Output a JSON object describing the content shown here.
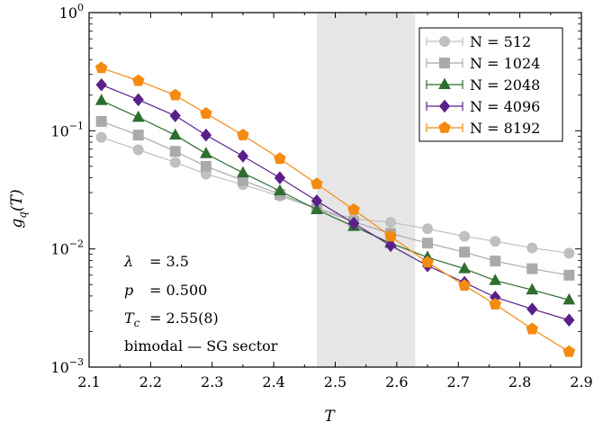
{
  "chart_data": {
    "type": "line",
    "xlabel": "T",
    "ylabel": "g_q(T)",
    "xlim": [
      2.1,
      2.9
    ],
    "ylim": [
      0.001,
      1
    ],
    "yscale": "log",
    "x_ticks": [
      "2.1",
      "2.2",
      "2.3",
      "2.4",
      "2.5",
      "2.6",
      "2.7",
      "2.8",
      "2.9"
    ],
    "y_ticks": [
      {
        "base": "10",
        "exp": "0",
        "value": 1
      },
      {
        "base": "10",
        "exp": "−1",
        "value": 0.1
      },
      {
        "base": "10",
        "exp": "−2",
        "value": 0.01
      },
      {
        "base": "10",
        "exp": "−3",
        "value": 0.001
      }
    ],
    "shaded_region": {
      "x": [
        2.47,
        2.63
      ],
      "color": "#e6e6e6"
    },
    "legend_position": "top-right",
    "x": [
      2.12,
      2.18,
      2.24,
      2.29,
      2.35,
      2.41,
      2.47,
      2.53,
      2.59,
      2.65,
      2.71,
      2.76,
      2.82,
      2.88
    ],
    "series": [
      {
        "name": "N = 512",
        "legend_label": "N  = 512",
        "color": "#c0c0c0",
        "marker": "circle",
        "values": [
          0.088,
          0.069,
          0.054,
          0.043,
          0.035,
          0.028,
          0.022,
          0.018,
          0.0168,
          0.0148,
          0.0128,
          0.0116,
          0.0102,
          0.0092
        ]
      },
      {
        "name": "N = 1024",
        "legend_label": "N = 1024",
        "color": "#aaaaaa",
        "marker": "square",
        "values": [
          0.12,
          0.092,
          0.067,
          0.05,
          0.038,
          0.029,
          0.022,
          0.017,
          0.0135,
          0.0112,
          0.0094,
          0.0079,
          0.0068,
          0.006
        ]
      },
      {
        "name": "N = 2048",
        "legend_label": "N = 2048",
        "color": "#2e6e2e",
        "marker": "triangle",
        "values": [
          0.18,
          0.13,
          0.092,
          0.064,
          0.044,
          0.031,
          0.0215,
          0.0155,
          0.0112,
          0.0085,
          0.0068,
          0.0054,
          0.0045,
          0.0037
        ]
      },
      {
        "name": "N = 4096",
        "legend_label": "N = 4096",
        "color": "#5b1f8a",
        "marker": "diamond",
        "values": [
          0.245,
          0.183,
          0.134,
          0.092,
          0.061,
          0.04,
          0.0255,
          0.0165,
          0.0107,
          0.0072,
          0.0052,
          0.0039,
          0.0031,
          0.0025
        ]
      },
      {
        "name": "N = 8192",
        "legend_label": "N = 8192",
        "color": "#f48a10",
        "marker": "pentagon",
        "values": [
          0.34,
          0.265,
          0.2,
          0.14,
          0.092,
          0.058,
          0.0355,
          0.0215,
          0.0128,
          0.0077,
          0.0049,
          0.0034,
          0.0021,
          0.00135
        ]
      }
    ],
    "annotations": [
      {
        "symbol": "λ",
        "text": "= 3.5"
      },
      {
        "symbol": "p",
        "text": "= 0.500"
      },
      {
        "symbol": "T",
        "sub": "c",
        "text": "= 2.55(8)"
      },
      {
        "symbol": "",
        "text": "bimodal — SG sector"
      }
    ]
  }
}
